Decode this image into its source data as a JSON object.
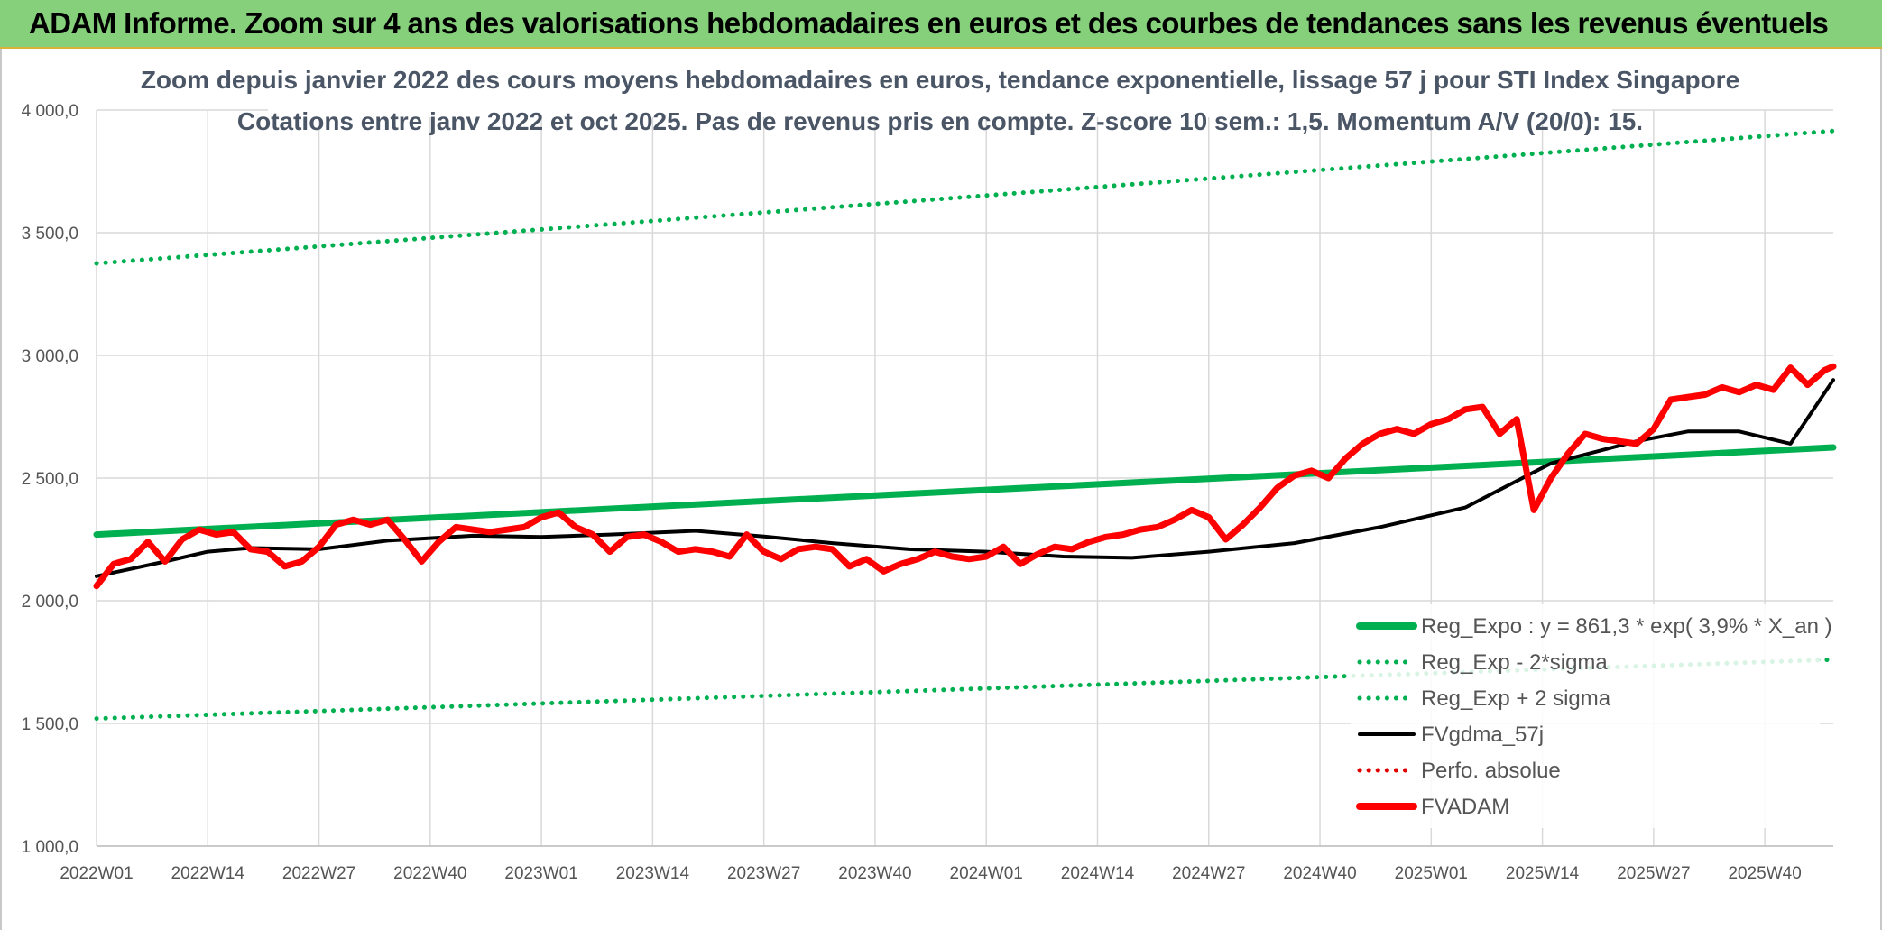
{
  "banner": {
    "title": "ADAM Informe. Zoom sur 4 ans des valorisations hebdomadaires en euros et des courbes de tendances sans les revenus éventuels"
  },
  "colors": {
    "banner_bg": "#86d07c",
    "reg_expo": "#00b050",
    "fvgdma": "#000000",
    "perfo": "#e00000",
    "fvadam": "#ff0000"
  },
  "chart_data": {
    "type": "line",
    "title": "Zoom depuis janvier 2022 des cours moyens hebdomadaires en euros, tendance exponentielle, lissage 57 j pour STI Index Singapore",
    "subtitle": "Cotations entre janv 2022 et oct 2025. Pas de revenus pris en compte. Z-score 10 sem.: 1,5. Momentum A/V (20/0): 15.",
    "ylim": [
      1000,
      4000
    ],
    "y_ticks": [
      "1 000,0",
      "1 500,0",
      "2 000,0",
      "2 500,0",
      "3 000,0",
      "3 500,0",
      "4 000,0"
    ],
    "x_ticks": [
      "2022W01",
      "2022W14",
      "2022W27",
      "2022W40",
      "2023W01",
      "2023W14",
      "2023W27",
      "2023W40",
      "2024W01",
      "2024W14",
      "2024W27",
      "2024W40",
      "2025W01",
      "2025W14",
      "2025W27",
      "2025W40"
    ],
    "grid": true,
    "legend_position": "bottom-right",
    "series": [
      {
        "name": "Reg_Expo : y = 861,3 * exp( 3,9% *  X_an )",
        "style": "solid-thick",
        "color": "#00b050",
        "x": [
          0,
          203
        ],
        "values": [
          2270,
          2625
        ]
      },
      {
        "name": "Reg_Exp - 2*sigma",
        "style": "dotted",
        "color": "#00b050",
        "x": [
          0,
          203
        ],
        "values": [
          1520,
          1760
        ]
      },
      {
        "name": "Reg_Exp + 2 sigma",
        "style": "dotted",
        "color": "#00b050",
        "x": [
          0,
          203
        ],
        "values": [
          3375,
          3915
        ]
      },
      {
        "name": "FVgdma_57j",
        "style": "solid",
        "color": "#000000",
        "x": [
          0,
          8,
          13,
          18,
          26,
          34,
          44,
          52,
          60,
          70,
          78,
          86,
          95,
          104,
          113,
          121,
          130,
          140,
          150,
          160,
          170,
          180,
          186,
          192,
          198,
          203
        ],
        "values": [
          2100,
          2160,
          2200,
          2215,
          2210,
          2245,
          2265,
          2260,
          2270,
          2285,
          2262,
          2235,
          2210,
          2200,
          2180,
          2175,
          2200,
          2235,
          2300,
          2380,
          2560,
          2650,
          2690,
          2690,
          2640,
          2900
        ]
      },
      {
        "name": "Perfo. absolue",
        "style": "dotted",
        "color": "#e00000",
        "x": [],
        "values": []
      },
      {
        "name": "FVADAM",
        "style": "solid-thick",
        "color": "#ff0000",
        "x": [
          0,
          2,
          4,
          6,
          8,
          10,
          12,
          14,
          16,
          18,
          20,
          22,
          24,
          26,
          28,
          30,
          32,
          34,
          36,
          38,
          40,
          42,
          44,
          46,
          48,
          50,
          52,
          54,
          56,
          58,
          60,
          62,
          64,
          66,
          68,
          70,
          72,
          74,
          76,
          78,
          80,
          82,
          84,
          86,
          88,
          90,
          92,
          94,
          96,
          98,
          100,
          102,
          104,
          106,
          108,
          110,
          112,
          114,
          116,
          118,
          120,
          122,
          124,
          126,
          128,
          130,
          132,
          134,
          136,
          138,
          140,
          142,
          144,
          146,
          148,
          150,
          152,
          154,
          156,
          158,
          160,
          162,
          164,
          166,
          168,
          170,
          172,
          174,
          176,
          178,
          180,
          182,
          184,
          186,
          188,
          190,
          192,
          194,
          196,
          198,
          200,
          202,
          203
        ],
        "values": [
          2060,
          2150,
          2170,
          2240,
          2160,
          2250,
          2290,
          2270,
          2280,
          2210,
          2200,
          2140,
          2160,
          2220,
          2310,
          2330,
          2310,
          2330,
          2250,
          2160,
          2240,
          2300,
          2290,
          2280,
          2290,
          2300,
          2340,
          2360,
          2300,
          2270,
          2200,
          2260,
          2270,
          2240,
          2200,
          2210,
          2200,
          2180,
          2270,
          2200,
          2170,
          2210,
          2220,
          2210,
          2140,
          2170,
          2120,
          2150,
          2170,
          2200,
          2180,
          2170,
          2180,
          2220,
          2150,
          2190,
          2220,
          2210,
          2240,
          2260,
          2270,
          2290,
          2300,
          2330,
          2370,
          2340,
          2250,
          2310,
          2380,
          2460,
          2510,
          2530,
          2500,
          2580,
          2640,
          2680,
          2700,
          2680,
          2720,
          2740,
          2780,
          2790,
          2680,
          2740,
          2370,
          2500,
          2600,
          2680,
          2660,
          2650,
          2640,
          2700,
          2820,
          2830,
          2840,
          2870,
          2850,
          2880,
          2860,
          2950,
          2880,
          2940,
          2955
        ]
      }
    ]
  }
}
